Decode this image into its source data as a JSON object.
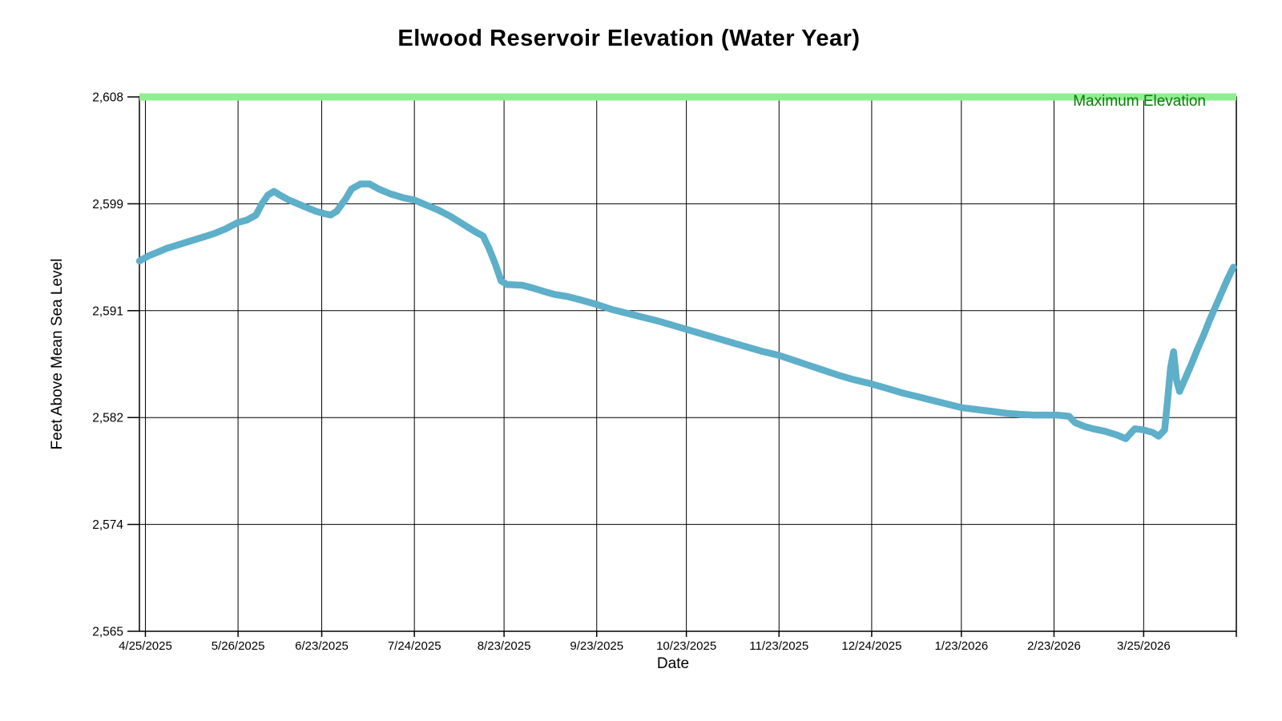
{
  "title": "Elwood Reservoir Elevation (Water Year)",
  "max_line": {
    "label": "Maximum Elevation",
    "value": 2608,
    "band_color": "#90EE90",
    "label_color": "#0E7A0E"
  },
  "colors": {
    "background": "#ffffff",
    "grid": "#000000",
    "axis": "#000000",
    "series": "#5EAFC9",
    "max_band": "#90EE90",
    "max_label": "#0E7A0E"
  },
  "chart_data": {
    "type": "line",
    "title": "Elwood Reservoir Elevation (Water Year)",
    "xlabel": "Date",
    "ylabel": "Feet Above Mean Sea Level",
    "grid": true,
    "legend_position": "none",
    "ylim": [
      2565,
      2608
    ],
    "x_domain": [
      "4/23/2025",
      "4/25/2026"
    ],
    "y_ticks": [
      "2,608",
      "2,599",
      "2,591",
      "2,582",
      "2,574",
      "2,565"
    ],
    "y_tick_values": [
      2608,
      2599,
      2591,
      2582,
      2574,
      2565
    ],
    "x_ticks": [
      "4/25/2025",
      "5/26/2025",
      "6/23/2025",
      "7/24/2025",
      "8/23/2025",
      "9/23/2025",
      "10/23/2025",
      "11/23/2025",
      "12/24/2025",
      "1/23/2026",
      "2/23/2026",
      "3/25/2026"
    ],
    "reference_lines": [
      {
        "label": "Maximum Elevation",
        "value": 2608,
        "color": "#90EE90"
      }
    ],
    "series": [
      {
        "name": "Reservoir Elevation",
        "color": "#5EAFC9",
        "points": [
          [
            "4/23/2025",
            2594.8
          ],
          [
            "4/26/2025",
            2595.2
          ],
          [
            "4/29/2025",
            2595.5
          ],
          [
            "5/2/2025",
            2595.8
          ],
          [
            "5/6/2025",
            2596.1
          ],
          [
            "5/10/2025",
            2596.4
          ],
          [
            "5/14/2025",
            2596.7
          ],
          [
            "5/18/2025",
            2597.0
          ],
          [
            "5/22/2025",
            2597.4
          ],
          [
            "5/26/2025",
            2597.9
          ],
          [
            "5/29/2025",
            2598.1
          ],
          [
            "6/1/2025",
            2598.5
          ],
          [
            "6/3/2025",
            2599.4
          ],
          [
            "6/5/2025",
            2600.1
          ],
          [
            "6/7/2025",
            2600.4
          ],
          [
            "6/9/2025",
            2600.1
          ],
          [
            "6/12/2025",
            2599.7
          ],
          [
            "6/15/2025",
            2599.4
          ],
          [
            "6/18/2025",
            2599.1
          ],
          [
            "6/21/2025",
            2598.8
          ],
          [
            "6/24/2025",
            2598.6
          ],
          [
            "6/26/2025",
            2598.5
          ],
          [
            "6/28/2025",
            2598.8
          ],
          [
            "7/1/2025",
            2599.8
          ],
          [
            "7/3/2025",
            2600.6
          ],
          [
            "7/6/2025",
            2601.0
          ],
          [
            "7/9/2025",
            2601.0
          ],
          [
            "7/12/2025",
            2600.6
          ],
          [
            "7/16/2025",
            2600.2
          ],
          [
            "7/20/2025",
            2599.9
          ],
          [
            "7/24/2025",
            2599.7
          ],
          [
            "7/28/2025",
            2599.3
          ],
          [
            "8/1/2025",
            2598.9
          ],
          [
            "8/5/2025",
            2598.4
          ],
          [
            "8/9/2025",
            2597.8
          ],
          [
            "8/13/2025",
            2597.2
          ],
          [
            "8/16/2025",
            2596.8
          ],
          [
            "8/18/2025",
            2595.8
          ],
          [
            "8/20/2025",
            2594.6
          ],
          [
            "8/22/2025",
            2593.2
          ],
          [
            "8/24/2025",
            2592.9
          ],
          [
            "8/29/2025",
            2592.85
          ],
          [
            "9/2/2025",
            2592.6
          ],
          [
            "9/6/2025",
            2592.3
          ],
          [
            "9/9/2025",
            2592.1
          ],
          [
            "9/13/2025",
            2591.95
          ],
          [
            "9/17/2025",
            2591.7
          ],
          [
            "9/20/2025",
            2591.5
          ],
          [
            "9/23/2025",
            2591.3
          ],
          [
            "9/28/2025",
            2590.9
          ],
          [
            "10/3/2025",
            2590.6
          ],
          [
            "10/8/2025",
            2590.3
          ],
          [
            "10/13/2025",
            2590.0
          ],
          [
            "10/18/2025",
            2589.65
          ],
          [
            "10/23/2025",
            2589.3
          ],
          [
            "10/28/2025",
            2588.95
          ],
          [
            "11/2/2025",
            2588.6
          ],
          [
            "11/7/2025",
            2588.25
          ],
          [
            "11/12/2025",
            2587.9
          ],
          [
            "11/17/2025",
            2587.55
          ],
          [
            "11/23/2025",
            2587.2
          ],
          [
            "11/28/2025",
            2586.8
          ],
          [
            "12/3/2025",
            2586.4
          ],
          [
            "12/8/2025",
            2586.0
          ],
          [
            "12/13/2025",
            2585.6
          ],
          [
            "12/18/2025",
            2585.25
          ],
          [
            "12/24/2025",
            2584.9
          ],
          [
            "12/29/2025",
            2584.55
          ],
          [
            "1/3/2026",
            2584.2
          ],
          [
            "1/8/2026",
            2583.9
          ],
          [
            "1/13/2026",
            2583.6
          ],
          [
            "1/18/2026",
            2583.3
          ],
          [
            "1/23/2026",
            2583.0
          ],
          [
            "1/28/2026",
            2582.85
          ],
          [
            "2/2/2026",
            2582.7
          ],
          [
            "2/7/2026",
            2582.55
          ],
          [
            "2/12/2026",
            2582.45
          ],
          [
            "2/16/2026",
            2582.4
          ],
          [
            "2/24/2026",
            2582.4
          ],
          [
            "2/28/2026",
            2582.3
          ],
          [
            "3/2/2026",
            2581.8
          ],
          [
            "3/5/2026",
            2581.5
          ],
          [
            "3/8/2026",
            2581.3
          ],
          [
            "3/12/2026",
            2581.1
          ],
          [
            "3/16/2026",
            2580.8
          ],
          [
            "3/19/2026",
            2580.5
          ],
          [
            "3/22/2026",
            2581.3
          ],
          [
            "3/25/2026",
            2581.2
          ],
          [
            "3/28/2026",
            2581.0
          ],
          [
            "3/30/2026",
            2580.7
          ],
          [
            "4/1/2026",
            2581.2
          ],
          [
            "4/2/2026",
            2583.6
          ],
          [
            "4/3/2026",
            2586.2
          ],
          [
            "4/4/2026",
            2587.5
          ],
          [
            "4/5/2026",
            2585.2
          ],
          [
            "4/6/2026",
            2584.3
          ],
          [
            "4/8/2026",
            2585.4
          ],
          [
            "4/10/2026",
            2586.5
          ],
          [
            "4/12/2026",
            2587.7
          ],
          [
            "4/14/2026",
            2588.8
          ],
          [
            "4/16/2026",
            2590.0
          ],
          [
            "4/18/2026",
            2591.1
          ],
          [
            "4/20/2026",
            2592.2
          ],
          [
            "4/22/2026",
            2593.3
          ],
          [
            "4/24/2026",
            2594.3
          ]
        ]
      }
    ]
  }
}
